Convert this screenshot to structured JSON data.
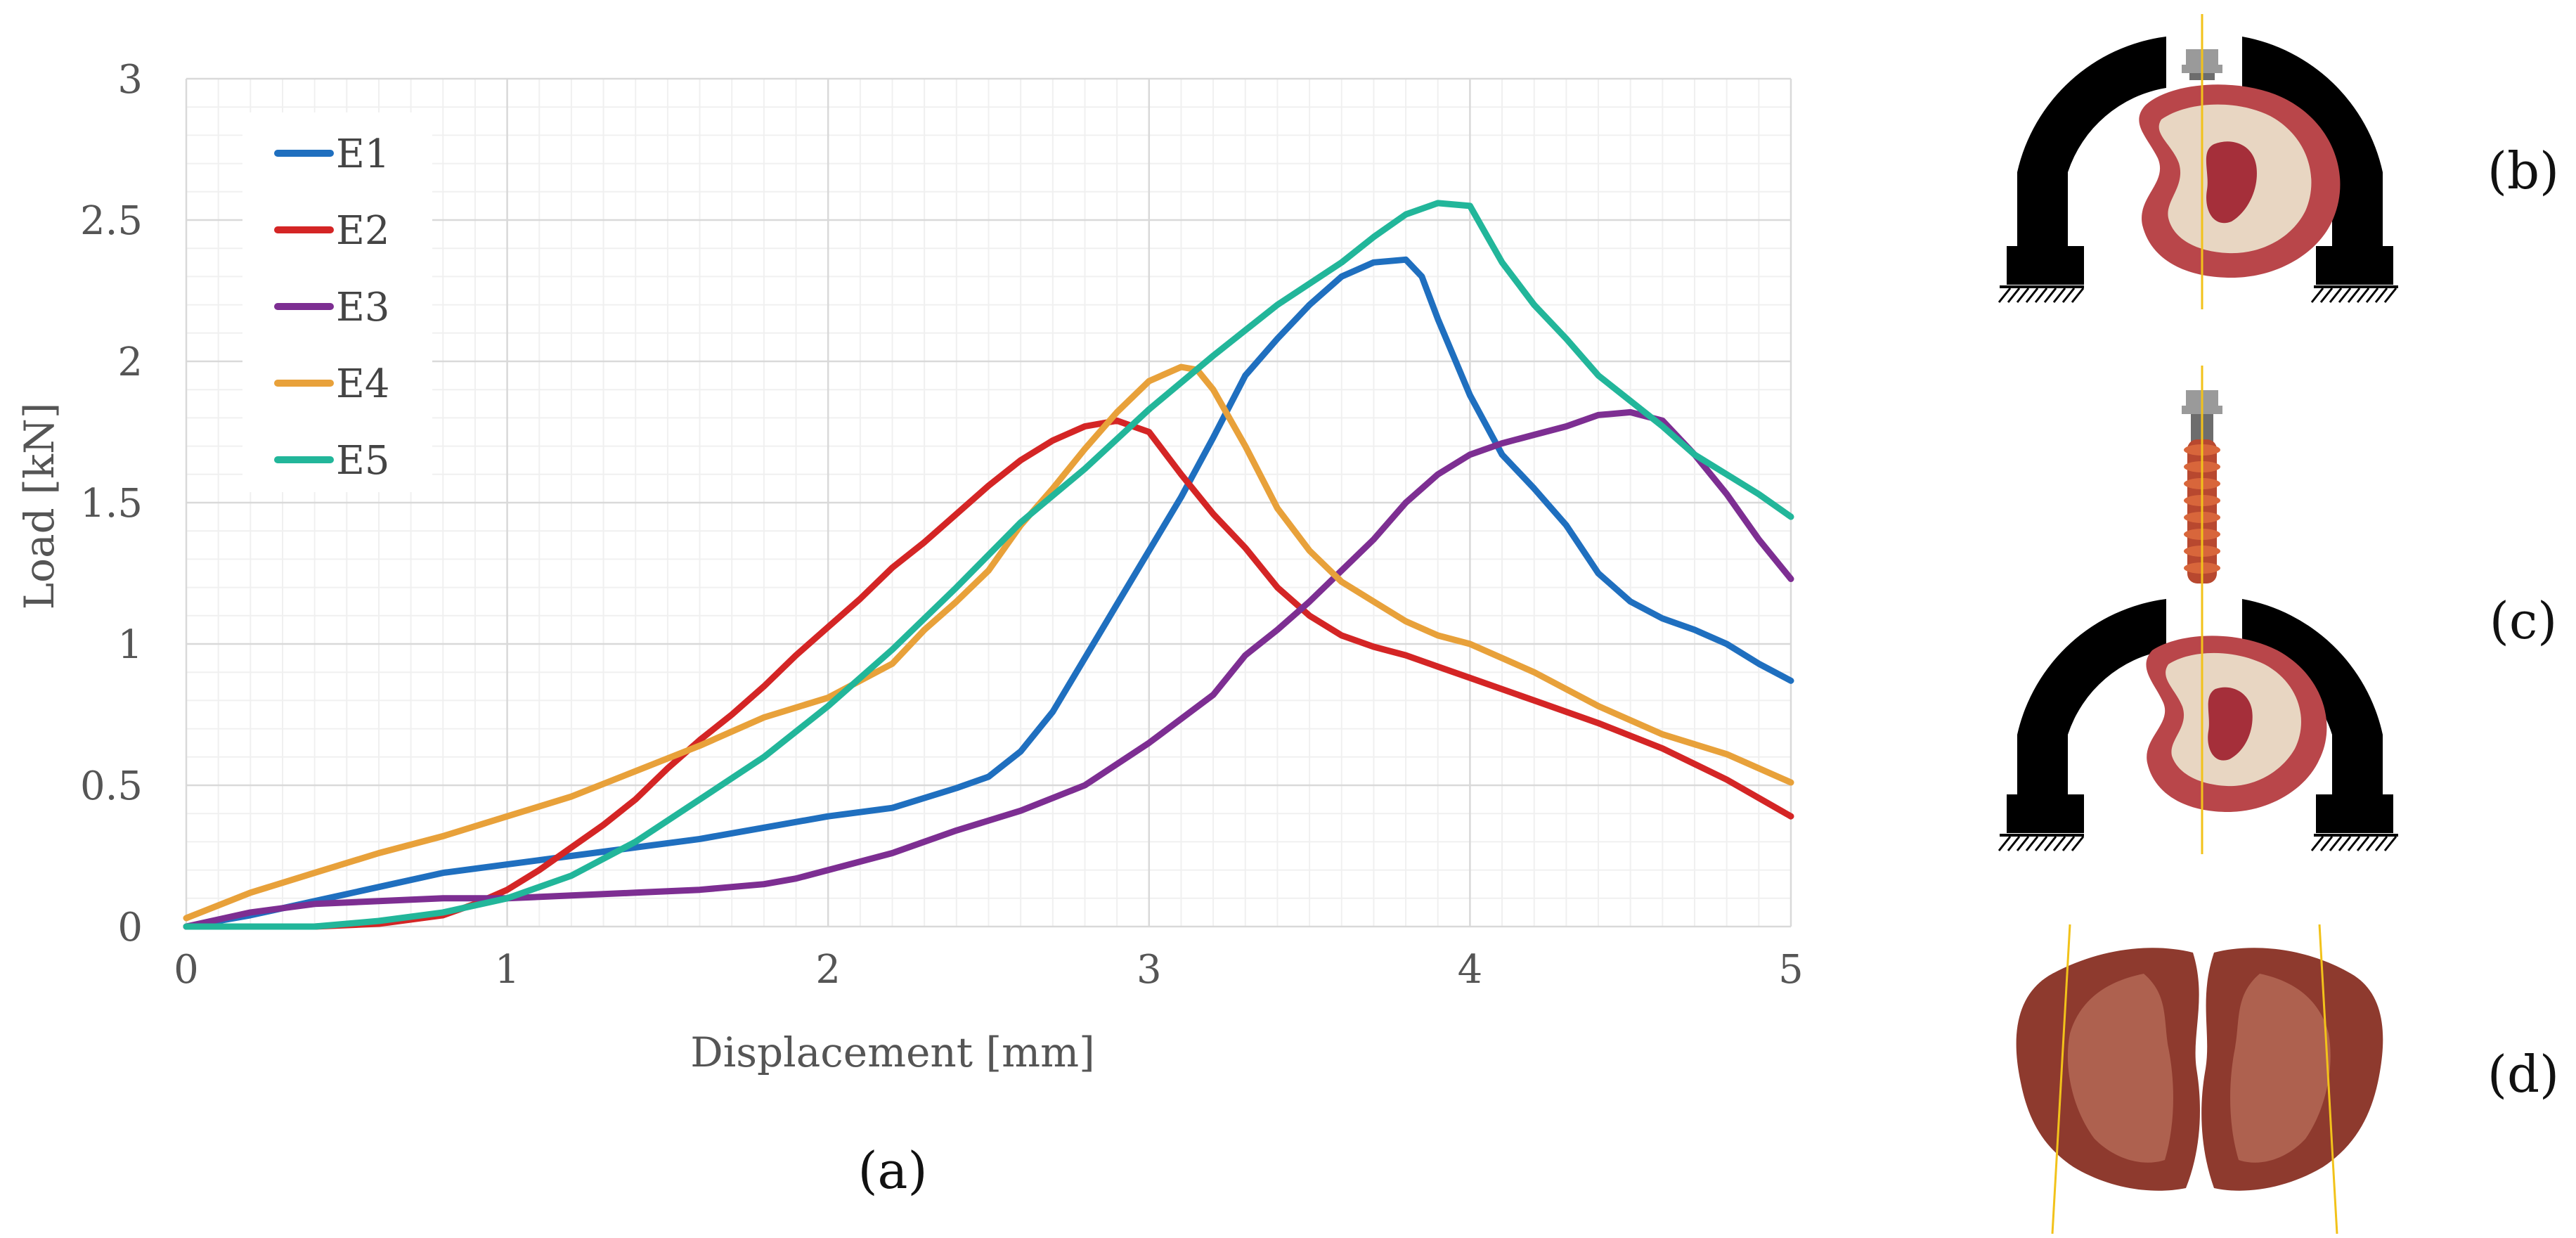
{
  "chart_data": {
    "type": "line",
    "title": "",
    "xlabel": "Displacement [mm]",
    "ylabel": "Load [kN]",
    "xlim": [
      0,
      5
    ],
    "ylim": [
      0,
      3
    ],
    "xticks": [
      "0",
      "1",
      "2",
      "3",
      "4",
      "5"
    ],
    "yticks": [
      "0",
      "0.5",
      "1",
      "1.5",
      "2",
      "2.5",
      "3"
    ],
    "grid": true,
    "minor_grid": true,
    "legend_position": "top-left",
    "series": [
      {
        "name": "E1",
        "color": "#1f6fbf",
        "x": [
          0,
          0.2,
          0.4,
          0.6,
          0.8,
          1.0,
          1.2,
          1.4,
          1.6,
          1.8,
          2.0,
          2.2,
          2.4,
          2.5,
          2.6,
          2.7,
          2.8,
          2.9,
          3.0,
          3.1,
          3.2,
          3.3,
          3.4,
          3.5,
          3.6,
          3.7,
          3.8,
          3.85,
          3.9,
          4.0,
          4.1,
          4.2,
          4.3,
          4.4,
          4.5,
          4.6,
          4.7,
          4.8,
          4.9,
          5.0
        ],
        "y": [
          0,
          0.04,
          0.09,
          0.14,
          0.19,
          0.22,
          0.25,
          0.28,
          0.31,
          0.35,
          0.39,
          0.42,
          0.49,
          0.53,
          0.62,
          0.76,
          0.95,
          1.14,
          1.33,
          1.52,
          1.73,
          1.95,
          2.08,
          2.2,
          2.3,
          2.35,
          2.36,
          2.3,
          2.15,
          1.88,
          1.67,
          1.55,
          1.42,
          1.25,
          1.15,
          1.09,
          1.05,
          1.0,
          0.93,
          0.87
        ]
      },
      {
        "name": "E2",
        "color": "#d42525",
        "x": [
          0,
          0.2,
          0.4,
          0.6,
          0.8,
          0.9,
          1.0,
          1.1,
          1.2,
          1.3,
          1.4,
          1.5,
          1.6,
          1.7,
          1.8,
          1.9,
          2.0,
          2.1,
          2.2,
          2.3,
          2.4,
          2.5,
          2.6,
          2.7,
          2.8,
          2.9,
          3.0,
          3.1,
          3.2,
          3.3,
          3.4,
          3.5,
          3.6,
          3.7,
          3.8,
          3.9,
          4.0,
          4.2,
          4.4,
          4.6,
          4.8,
          5.0
        ],
        "y": [
          0,
          0,
          0,
          0.01,
          0.04,
          0.08,
          0.13,
          0.2,
          0.28,
          0.36,
          0.45,
          0.56,
          0.66,
          0.75,
          0.85,
          0.96,
          1.06,
          1.16,
          1.27,
          1.36,
          1.46,
          1.56,
          1.65,
          1.72,
          1.77,
          1.79,
          1.75,
          1.6,
          1.46,
          1.34,
          1.2,
          1.1,
          1.03,
          0.99,
          0.96,
          0.92,
          0.88,
          0.8,
          0.72,
          0.63,
          0.52,
          0.39
        ]
      },
      {
        "name": "E3",
        "color": "#7d2e92",
        "x": [
          0,
          0.2,
          0.4,
          0.6,
          0.8,
          1.0,
          1.2,
          1.4,
          1.6,
          1.8,
          1.9,
          2.0,
          2.2,
          2.4,
          2.6,
          2.8,
          3.0,
          3.2,
          3.3,
          3.4,
          3.5,
          3.6,
          3.7,
          3.8,
          3.9,
          4.0,
          4.1,
          4.2,
          4.3,
          4.4,
          4.5,
          4.6,
          4.7,
          4.8,
          4.9,
          5.0
        ],
        "y": [
          0,
          0.05,
          0.08,
          0.09,
          0.1,
          0.1,
          0.11,
          0.12,
          0.13,
          0.15,
          0.17,
          0.2,
          0.26,
          0.34,
          0.41,
          0.5,
          0.65,
          0.82,
          0.96,
          1.05,
          1.15,
          1.26,
          1.37,
          1.5,
          1.6,
          1.67,
          1.71,
          1.74,
          1.77,
          1.81,
          1.82,
          1.79,
          1.67,
          1.53,
          1.37,
          1.23
        ]
      },
      {
        "name": "E4",
        "color": "#e8a13a",
        "x": [
          0,
          0.2,
          0.4,
          0.6,
          0.8,
          1.0,
          1.2,
          1.4,
          1.6,
          1.8,
          2.0,
          2.2,
          2.3,
          2.4,
          2.5,
          2.6,
          2.7,
          2.8,
          2.9,
          3.0,
          3.1,
          3.15,
          3.2,
          3.3,
          3.4,
          3.5,
          3.6,
          3.7,
          3.8,
          3.9,
          4.0,
          4.2,
          4.4,
          4.6,
          4.8,
          5.0
        ],
        "y": [
          0.03,
          0.12,
          0.19,
          0.26,
          0.32,
          0.39,
          0.46,
          0.55,
          0.64,
          0.74,
          0.81,
          0.93,
          1.05,
          1.15,
          1.26,
          1.42,
          1.55,
          1.69,
          1.82,
          1.93,
          1.98,
          1.97,
          1.9,
          1.7,
          1.48,
          1.33,
          1.22,
          1.15,
          1.08,
          1.03,
          1.0,
          0.9,
          0.78,
          0.68,
          0.61,
          0.51
        ]
      },
      {
        "name": "E5",
        "color": "#22b69a",
        "x": [
          0,
          0.2,
          0.4,
          0.6,
          0.8,
          1.0,
          1.2,
          1.4,
          1.6,
          1.8,
          2.0,
          2.2,
          2.4,
          2.6,
          2.8,
          3.0,
          3.2,
          3.4,
          3.6,
          3.7,
          3.8,
          3.9,
          4.0,
          4.05,
          4.1,
          4.2,
          4.3,
          4.4,
          4.5,
          4.6,
          4.7,
          4.8,
          4.9,
          5.0
        ],
        "y": [
          0,
          0,
          0,
          0.02,
          0.05,
          0.1,
          0.18,
          0.3,
          0.45,
          0.6,
          0.78,
          0.98,
          1.2,
          1.43,
          1.62,
          1.83,
          2.02,
          2.2,
          2.35,
          2.44,
          2.52,
          2.56,
          2.55,
          2.45,
          2.35,
          2.2,
          2.08,
          1.95,
          1.86,
          1.77,
          1.67,
          1.6,
          1.53,
          1.45
        ]
      }
    ]
  },
  "panel_labels": {
    "a": "(a)",
    "b": "(b)",
    "c": "(c)",
    "d": "(d)"
  },
  "colors": {
    "fixture": "#000000",
    "specimen": "#b9464a",
    "cut_line": "#f2c21a",
    "screw": "#9a9a9a"
  }
}
